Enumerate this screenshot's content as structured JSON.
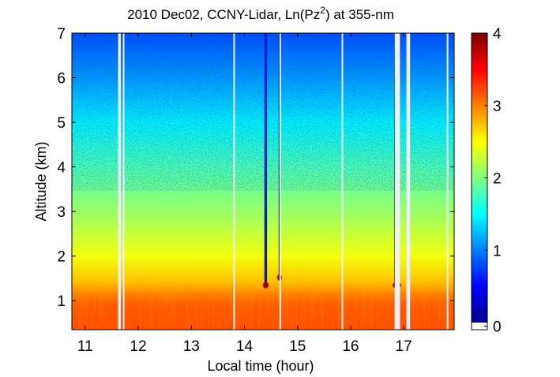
{
  "chart_data": {
    "type": "heatmap",
    "title": {
      "prefix": "2010 Dec02, CCNY-Lidar, Ln(Pz",
      "superscript": "2",
      "suffix": ") at 355-nm"
    },
    "xlabel": "Local time (hour)",
    "ylabel": "Altitude (km)",
    "xlim": [
      10.75,
      17.95
    ],
    "ylim": [
      0.35,
      7.0
    ],
    "xticks": [
      11,
      12,
      13,
      14,
      15,
      16,
      17
    ],
    "yticks": [
      1,
      2,
      3,
      4,
      5,
      6,
      7
    ],
    "colorbar": {
      "range": [
        0,
        4
      ],
      "ticks": [
        0,
        1,
        2,
        3,
        4
      ],
      "colormap": "jet",
      "zero_color": "#ffffff"
    },
    "value_profile": [
      {
        "altitude_km": 0.35,
        "value": 3.2
      },
      {
        "altitude_km": 0.9,
        "value": 3.15
      },
      {
        "altitude_km": 1.15,
        "value": 3.0
      },
      {
        "altitude_km": 1.4,
        "value": 2.75
      },
      {
        "altitude_km": 2.0,
        "value": 2.45
      },
      {
        "altitude_km": 3.0,
        "value": 2.1
      },
      {
        "altitude_km": 4.0,
        "value": 1.8
      },
      {
        "altitude_km": 5.0,
        "value": 1.45
      },
      {
        "altitude_km": 6.0,
        "value": 1.1
      },
      {
        "altitude_km": 7.0,
        "value": 0.8
      }
    ],
    "data_gaps": [
      {
        "start_hour": 11.62,
        "end_hour": 11.67
      },
      {
        "start_hour": 11.71,
        "end_hour": 11.74
      },
      {
        "start_hour": 13.79,
        "end_hour": 13.82
      },
      {
        "start_hour": 14.66,
        "end_hour": 14.69
      },
      {
        "start_hour": 15.83,
        "end_hour": 15.86
      },
      {
        "start_hour": 16.83,
        "end_hour": 16.93
      },
      {
        "start_hour": 17.05,
        "end_hour": 17.12
      },
      {
        "start_hour": 17.81,
        "end_hour": 17.84
      }
    ],
    "cloud_events": [
      {
        "hour": 14.4,
        "base_km": 1.35,
        "width_hours": 0.05
      },
      {
        "hour": 14.66,
        "base_km": 1.52,
        "width_hours": 0.03
      },
      {
        "hour": 16.87,
        "base_km": 1.35,
        "width_hours": 0.1
      }
    ]
  }
}
